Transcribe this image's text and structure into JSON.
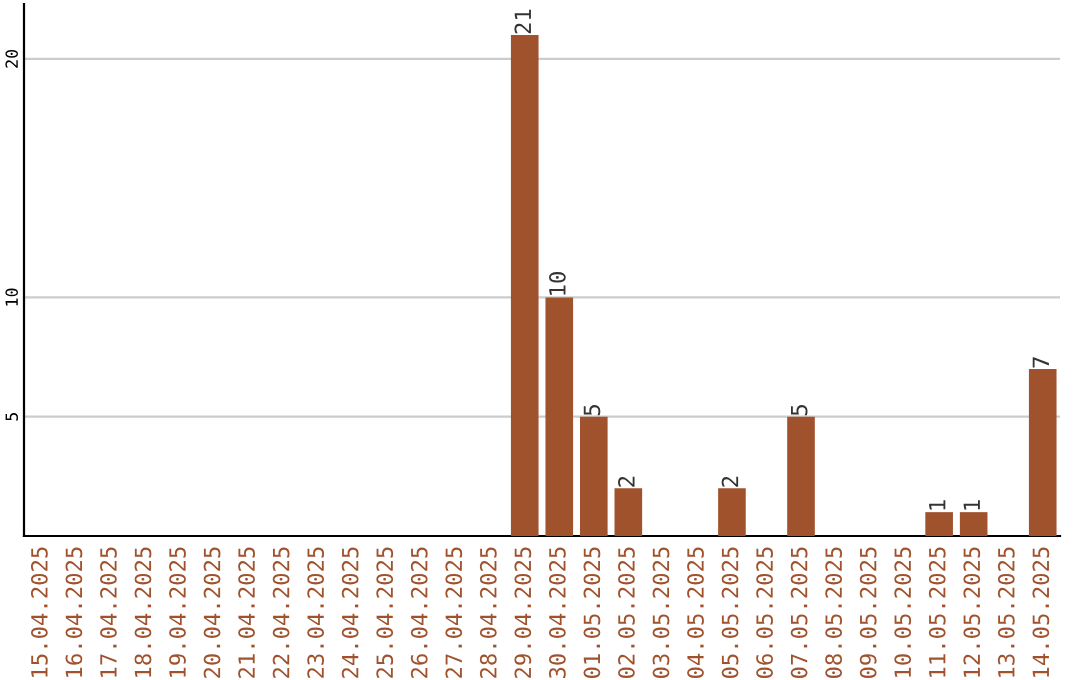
{
  "chart_data": {
    "type": "bar",
    "categories": [
      "15.04.2025",
      "16.04.2025",
      "17.04.2025",
      "18.04.2025",
      "19.04.2025",
      "20.04.2025",
      "21.04.2025",
      "22.04.2025",
      "23.04.2025",
      "24.04.2025",
      "25.04.2025",
      "26.04.2025",
      "27.04.2025",
      "28.04.2025",
      "29.04.2025",
      "30.04.2025",
      "01.05.2025",
      "02.05.2025",
      "03.05.2025",
      "04.05.2025",
      "05.05.2025",
      "06.05.2025",
      "07.05.2025",
      "08.05.2025",
      "09.05.2025",
      "10.05.2025",
      "11.05.2025",
      "12.05.2025",
      "13.05.2025",
      "14.05.2025"
    ],
    "values": [
      0,
      0,
      0,
      0,
      0,
      0,
      0,
      0,
      0,
      0,
      0,
      0,
      0,
      0,
      21,
      10,
      5,
      2,
      0,
      0,
      2,
      0,
      5,
      0,
      0,
      0,
      1,
      1,
      0,
      7
    ],
    "value_labels": [
      null,
      null,
      null,
      null,
      null,
      null,
      null,
      null,
      null,
      null,
      null,
      null,
      null,
      null,
      "21",
      "10",
      "5",
      "2",
      null,
      null,
      "2",
      null,
      "5",
      null,
      null,
      null,
      "1",
      "1",
      null,
      "7"
    ],
    "color": "#a0522d",
    "ylim": [
      0,
      22.3
    ],
    "yticks": [
      5,
      10,
      20
    ],
    "grid": "y"
  }
}
